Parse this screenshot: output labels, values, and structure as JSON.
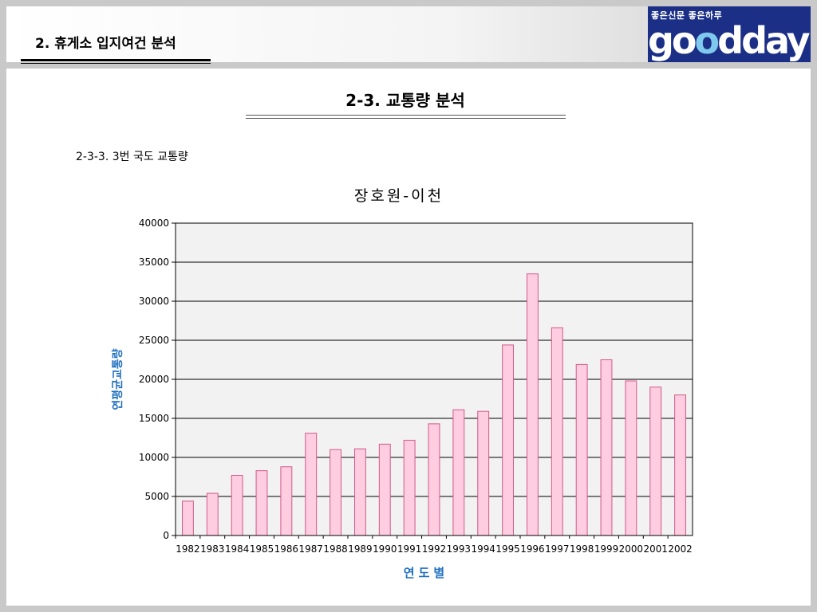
{
  "header": {
    "section_title": "2. 휴게소 입지여건 분석",
    "logo_tagline": "좋은신문 좋은하루",
    "logo_word_a": "go",
    "logo_word_b": "o",
    "logo_word_c": "dday"
  },
  "page": {
    "title": "2-3. 교통량 분석",
    "subtitle": "2-3-3. 3번 국도 교통량"
  },
  "colors": {
    "bar_fill": "#ffcce0",
    "bar_stroke": "#d05a86",
    "plot_bg": "#f2f2f2",
    "axis_label": "#1f6fc0",
    "logo_bg": "#1b2f86"
  },
  "chart_data": {
    "type": "bar",
    "title": "장호원-이천",
    "xlabel": "연도별",
    "ylabel": "연평균교통량",
    "ylim": [
      0,
      40000
    ],
    "yticks": [
      0,
      5000,
      10000,
      15000,
      20000,
      25000,
      30000,
      35000,
      40000
    ],
    "grid": true,
    "legend": false,
    "categories": [
      "1982",
      "1983",
      "1984",
      "1985",
      "1986",
      "1987",
      "1988",
      "1989",
      "1990",
      "1991",
      "1992",
      "1993",
      "1994",
      "1995",
      "1996",
      "1997",
      "1998",
      "1999",
      "2000",
      "2001",
      "2002"
    ],
    "values": [
      4400,
      5400,
      7700,
      8300,
      8800,
      13100,
      11000,
      11100,
      11700,
      12200,
      14300,
      16100,
      15900,
      24400,
      33500,
      26600,
      21900,
      22500,
      19800,
      19000,
      18000
    ]
  }
}
